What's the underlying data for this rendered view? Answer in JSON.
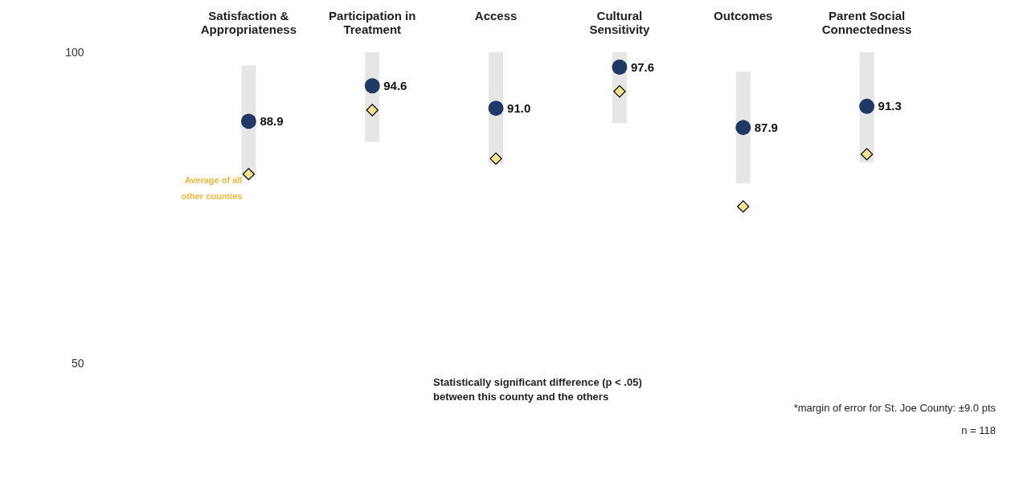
{
  "chart_data": {
    "type": "scatter",
    "categories": [
      "Satisfaction & Appropriateness",
      "Participation in Treatment",
      "Access",
      "Cultural Sensitivity",
      "Outcomes",
      "Parent Social Connectedness"
    ],
    "series": [
      {
        "color": "#1f3864",
        "marker": "circle",
        "values": [
          88.9,
          94.6,
          91.0,
          97.6,
          87.9,
          91.3
        ],
        "errors": [
          [
            79.9,
            97.9
          ],
          [
            85.6,
            100
          ],
          [
            82.0,
            100
          ],
          [
            88.6,
            100
          ],
          [
            78.9,
            96.9
          ],
          [
            82.3,
            100
          ]
        ],
        "value_labels": [
          "88.9",
          "94.6",
          "91.0",
          "97.6",
          "87.9",
          "91.3"
        ]
      },
      {
        "color": "#f2e38e",
        "marker": "diamond",
        "values": [
          80.4,
          90.7,
          82.9,
          93.7,
          75.2,
          83.6
        ]
      }
    ],
    "ylim": [
      50,
      100
    ],
    "yticks": [
      50,
      100
    ],
    "annotations": [
      {
        "text": "Average of all other counties",
        "x": "Satisfaction & Appropriateness",
        "y": 80.4
      },
      "Statistically significant difference (p < .05) between this county and the others",
      "*margin of error for St. Joe County: ±9.0 pts",
      "n = 118"
    ]
  }
}
